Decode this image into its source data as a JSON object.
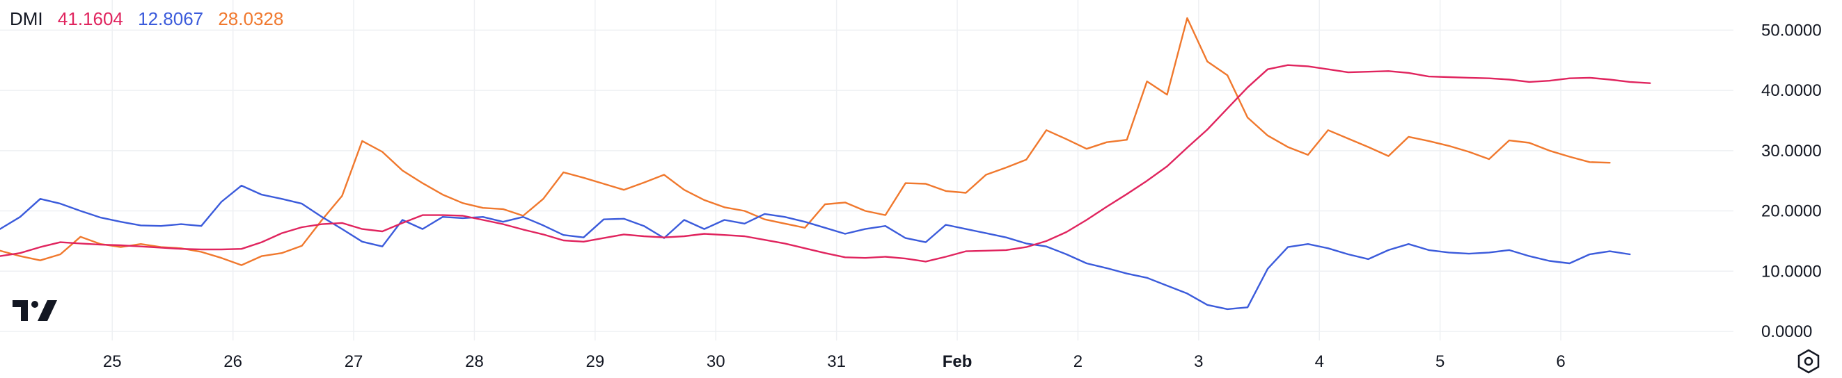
{
  "legend": {
    "name": "DMI",
    "adx_value": "41.1604",
    "minus_di_value": "12.8067",
    "plus_di_value": "28.0328"
  },
  "icons": {
    "logo": "tradingview-logo",
    "settings": "settings-gear-icon"
  },
  "colors": {
    "adx": "#E0245E",
    "minus_di": "#3B5BDB",
    "plus_di": "#F0782D",
    "grid": "#EEF0F3",
    "text": "#131722"
  },
  "chart_data": {
    "type": "line",
    "title": "DMI",
    "grid": true,
    "x_ticks": [
      "25",
      "26",
      "27",
      "28",
      "29",
      "30",
      "31",
      "Feb",
      "2",
      "3",
      "4",
      "5",
      "6"
    ],
    "x_tick_days": [
      1,
      2,
      3,
      4,
      5,
      6,
      7,
      8,
      9,
      10,
      11,
      12,
      13
    ],
    "y_ticks": [
      "0.0000",
      "10.0000",
      "20.0000",
      "30.0000",
      "40.0000",
      "50.0000"
    ],
    "y_tick_values": [
      0,
      10,
      20,
      30,
      40,
      50
    ],
    "ylim": [
      -1.5,
      55
    ],
    "x_range_days": [
      0.07,
      14.43
    ],
    "x_step_days": 0.1667,
    "series": [
      {
        "key": "adx",
        "values": [
          12.5,
          13.0,
          14.0,
          14.8,
          14.6,
          14.4,
          14.3,
          14.1,
          13.9,
          13.7,
          13.6,
          13.6,
          13.7,
          14.8,
          16.3,
          17.3,
          17.8,
          18.0,
          17.0,
          16.6,
          18.0,
          19.3,
          19.3,
          19.2,
          18.5,
          17.8,
          16.9,
          16.1,
          15.1,
          14.9,
          15.5,
          16.1,
          15.8,
          15.6,
          15.8,
          16.2,
          16.0,
          15.8,
          15.2,
          14.6,
          13.8,
          13.0,
          12.3,
          12.2,
          12.4,
          12.1,
          11.6,
          12.4,
          13.3,
          13.4,
          13.5,
          14.0,
          15.0,
          16.5,
          18.5,
          20.7,
          22.8,
          25.0,
          27.4,
          30.5,
          33.5,
          37.0,
          40.5,
          43.5,
          44.2,
          44.0,
          43.5,
          43.0,
          43.1,
          43.2,
          42.9,
          42.3,
          42.2,
          42.1,
          42.0,
          41.8,
          41.4,
          41.6,
          42.0,
          42.1,
          41.8,
          41.4,
          41.2
        ],
        "last": 41.1604
      },
      {
        "key": "minus_di",
        "values": [
          17.0,
          19.0,
          22.0,
          21.2,
          20.0,
          18.9,
          18.2,
          17.6,
          17.5,
          17.8,
          17.5,
          21.5,
          24.2,
          22.7,
          22.0,
          21.2,
          19.0,
          17.0,
          14.9,
          14.1,
          18.5,
          17.0,
          19.0,
          18.8,
          19.0,
          18.2,
          19.0,
          17.6,
          16.0,
          15.6,
          18.6,
          18.7,
          17.5,
          15.5,
          18.5,
          17.0,
          18.5,
          17.9,
          19.5,
          19.0,
          18.2,
          17.2,
          16.2,
          17.0,
          17.5,
          15.5,
          14.8,
          17.7,
          17.0,
          16.3,
          15.6,
          14.6,
          14.1,
          12.8,
          11.3,
          10.5,
          9.6,
          8.9,
          7.6,
          6.3,
          4.4,
          3.7,
          4.0,
          10.4,
          14.0,
          14.5,
          13.8,
          12.8,
          12.0,
          13.5,
          14.5,
          13.5,
          13.1,
          12.9,
          13.1,
          13.5,
          12.5,
          11.7,
          11.3,
          12.8,
          13.3,
          12.8
        ],
        "last": 12.8067
      },
      {
        "key": "plus_di",
        "values": [
          13.4,
          12.5,
          11.8,
          12.8,
          15.7,
          14.5,
          14.0,
          14.5,
          14.0,
          13.8,
          13.2,
          12.2,
          11.0,
          12.5,
          13.0,
          14.2,
          18.5,
          22.5,
          31.6,
          29.8,
          26.7,
          24.6,
          22.7,
          21.3,
          20.5,
          20.3,
          19.2,
          22.0,
          26.4,
          25.5,
          24.5,
          23.5,
          24.7,
          26.0,
          23.5,
          21.8,
          20.6,
          20.0,
          18.6,
          17.9,
          17.2,
          21.1,
          21.4,
          20.0,
          19.3,
          24.6,
          24.5,
          23.3,
          23.0,
          26.0,
          27.2,
          28.5,
          33.4,
          31.9,
          30.3,
          31.4,
          31.8,
          41.5,
          39.3,
          52.0,
          44.8,
          42.5,
          35.5,
          32.5,
          30.6,
          29.3,
          33.4,
          32.0,
          30.6,
          29.1,
          32.3,
          31.6,
          30.8,
          29.8,
          28.6,
          31.7,
          31.3,
          30.0,
          29.0,
          28.1,
          28.0
        ],
        "last": 28.0328
      }
    ]
  }
}
